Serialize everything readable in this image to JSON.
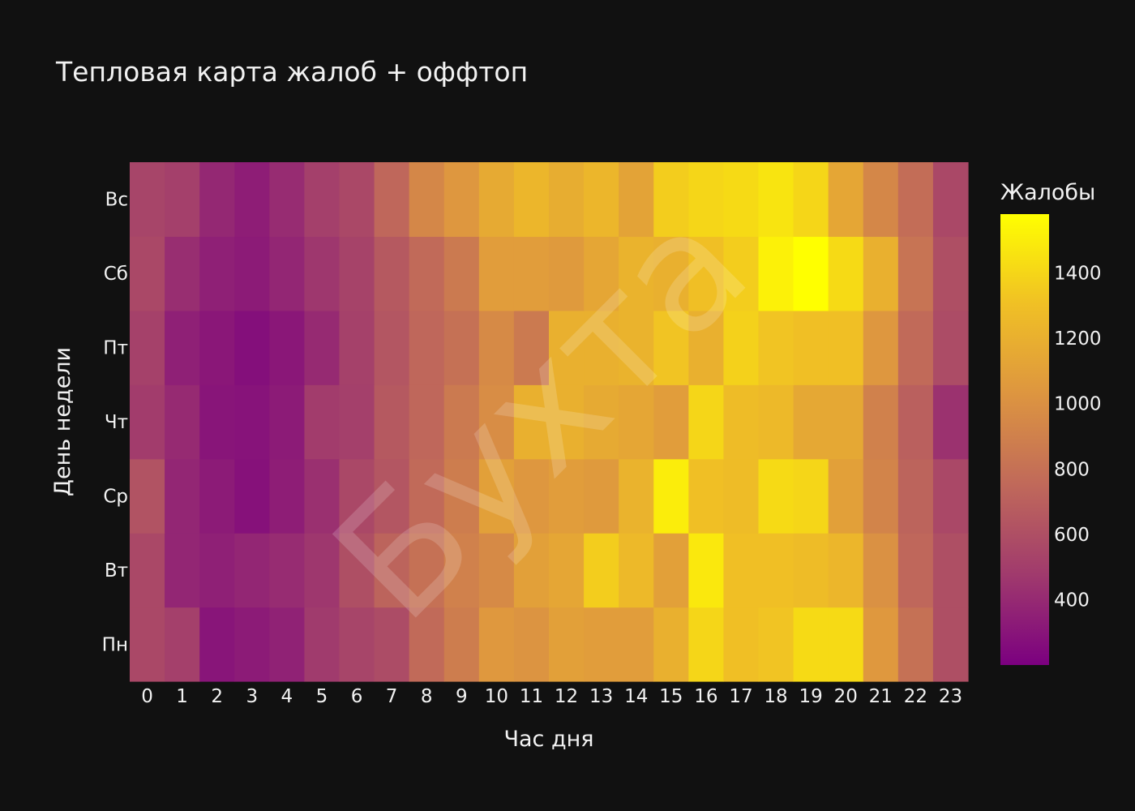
{
  "chart_data": {
    "type": "heatmap",
    "title": "Тепловая карта жалоб + оффтоп",
    "xlabel": "Час дня",
    "ylabel": "День недели",
    "colorbar_title": "Жалобы",
    "watermark": "Бухта",
    "x": [
      "0",
      "1",
      "2",
      "3",
      "4",
      "5",
      "6",
      "7",
      "8",
      "9",
      "10",
      "11",
      "12",
      "13",
      "14",
      "15",
      "16",
      "17",
      "18",
      "19",
      "20",
      "21",
      "22",
      "23"
    ],
    "y": [
      "Пн",
      "Вт",
      "Ср",
      "Чт",
      "Пт",
      "Сб",
      "Вс"
    ],
    "colorscale": [
      "#7b0080",
      "#a03a6d",
      "#c0695a",
      "#dd9540",
      "#f0c025",
      "#ffff00"
    ],
    "zmin": 200,
    "zmax": 1580,
    "colorbar_ticks": [
      400,
      600,
      800,
      1000,
      1200,
      1400
    ],
    "z": [
      [
        560,
        510,
        300,
        330,
        360,
        480,
        540,
        580,
        760,
        880,
        1050,
        1020,
        1100,
        1080,
        1080,
        1200,
        1400,
        1300,
        1320,
        1420,
        1420,
        1050,
        800,
        600
      ],
      [
        560,
        380,
        350,
        380,
        410,
        460,
        600,
        720,
        800,
        900,
        960,
        1100,
        1140,
        1360,
        1260,
        1100,
        1480,
        1300,
        1300,
        1280,
        1240,
        1000,
        740,
        600
      ],
      [
        620,
        380,
        330,
        280,
        340,
        430,
        560,
        640,
        760,
        880,
        1100,
        1040,
        1080,
        1060,
        1220,
        1500,
        1300,
        1280,
        1420,
        1400,
        1100,
        920,
        720,
        560
      ],
      [
        490,
        400,
        300,
        290,
        330,
        490,
        510,
        660,
        740,
        860,
        980,
        1200,
        1200,
        1160,
        1140,
        1080,
        1400,
        1280,
        1260,
        1150,
        1150,
        900,
        700,
        440
      ],
      [
        520,
        350,
        310,
        270,
        310,
        400,
        520,
        640,
        740,
        800,
        960,
        860,
        1200,
        1200,
        1220,
        1320,
        1200,
        1380,
        1320,
        1300,
        1300,
        1040,
        760,
        580
      ],
      [
        560,
        420,
        350,
        330,
        380,
        460,
        530,
        660,
        760,
        860,
        1080,
        1080,
        1060,
        1140,
        1220,
        1200,
        1300,
        1360,
        1520,
        1580,
        1420,
        1200,
        820,
        600
      ],
      [
        540,
        510,
        390,
        340,
        410,
        510,
        560,
        740,
        940,
        1040,
        1160,
        1240,
        1180,
        1240,
        1120,
        1360,
        1400,
        1420,
        1460,
        1400,
        1140,
        940,
        780,
        560
      ]
    ]
  }
}
